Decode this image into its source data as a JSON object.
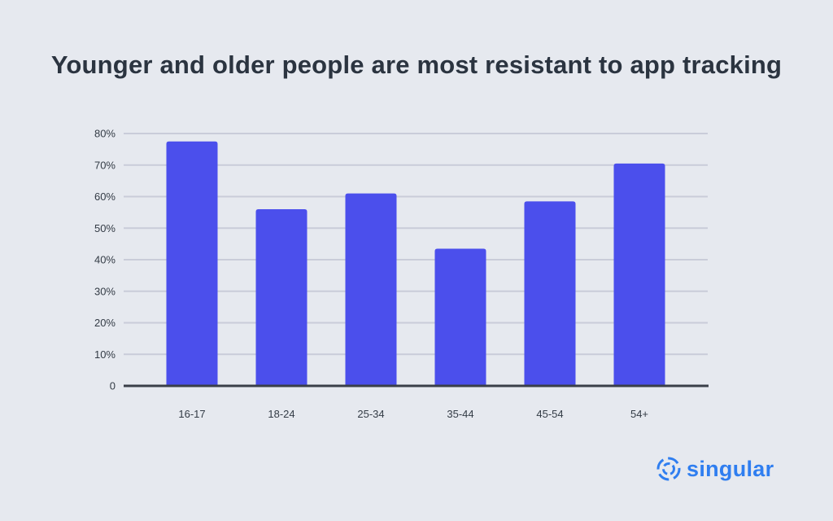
{
  "chart_data": {
    "type": "bar",
    "title": "Younger and older people are most resistant to app tracking",
    "categories": [
      "16-17",
      "18-24",
      "25-34",
      "35-44",
      "45-54",
      "54+"
    ],
    "values": [
      77.5,
      56,
      61,
      43.5,
      58.5,
      70.5
    ],
    "ylim": [
      0,
      80
    ],
    "yticks": [
      0,
      10,
      20,
      30,
      40,
      50,
      60,
      70,
      80
    ],
    "ytick_labels": [
      "0",
      "10%",
      "20%",
      "30%",
      "40%",
      "50%",
      "60%",
      "70%",
      "80%"
    ],
    "grid": true,
    "bar_color": "#4b4fec",
    "grid_color": "#c9ccd9",
    "axis_color": "#3a3f48"
  },
  "brand": {
    "name": "singular",
    "color": "#2f7ef0"
  }
}
